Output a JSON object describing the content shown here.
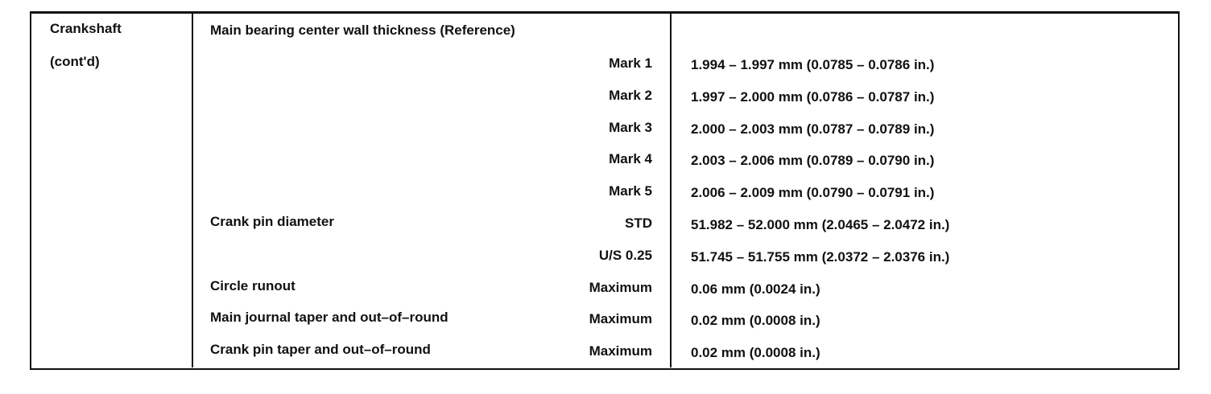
{
  "section": [
    "Crankshaft",
    "(cont'd)"
  ],
  "heading": "Main bearing center wall thickness (Reference)",
  "rows": [
    {
      "condition": "Mark 1",
      "spec": "1.994 – 1.997 mm (0.0785 – 0.0786 in.)"
    },
    {
      "condition": "Mark 2",
      "spec": "1.997 – 2.000 mm (0.0786 – 0.0787 in.)"
    },
    {
      "condition": "Mark 3",
      "spec": "2.000 – 2.003 mm (0.0787 – 0.0789 in.)"
    },
    {
      "condition": "Mark 4",
      "spec": "2.003 – 2.006 mm (0.0789 – 0.0790 in.)"
    },
    {
      "condition": "Mark 5",
      "spec": "2.006 – 2.009 mm (0.0790 – 0.0791 in.)"
    },
    {
      "item": "Crank pin diameter",
      "condition": "STD",
      "spec": "51.982 – 52.000 mm (2.0465 – 2.0472 in.)"
    },
    {
      "condition": "U/S 0.25",
      "spec": "51.745 – 51.755 mm (2.0372 – 2.0376 in.)"
    },
    {
      "item": "Circle runout",
      "condition": "Maximum",
      "spec": "0.06 mm (0.0024 in.)"
    },
    {
      "item": "Main journal taper and out–of–round",
      "condition": "Maximum",
      "spec": "0.02 mm (0.0008 in.)"
    },
    {
      "item": "Crank pin taper and out–of–round",
      "condition": "Maximum",
      "spec": "0.02 mm (0.0008 in.)"
    }
  ]
}
